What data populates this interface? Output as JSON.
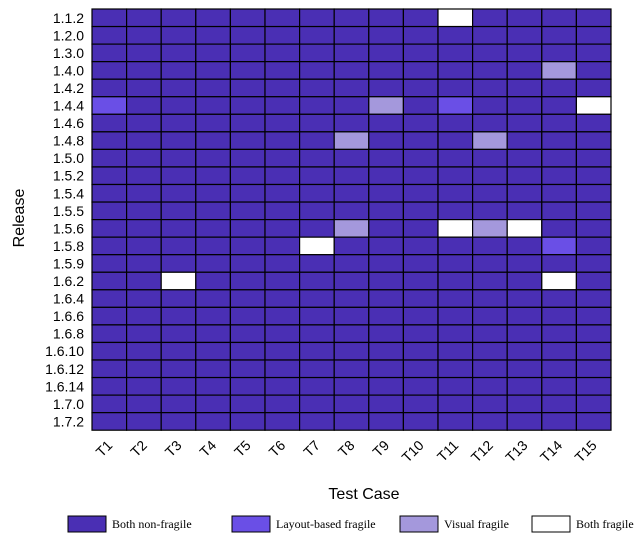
{
  "chart_data": {
    "type": "heatmap",
    "xlabel": "Test Case",
    "ylabel": "Release",
    "x_categories": [
      "T1",
      "T2",
      "T3",
      "T4",
      "T5",
      "T6",
      "T7",
      "T8",
      "T9",
      "T10",
      "T11",
      "T12",
      "T13",
      "T14",
      "T15"
    ],
    "y_categories": [
      "1.1.2",
      "1.2.0",
      "1.3.0",
      "1.4.0",
      "1.4.2",
      "1.4.4",
      "1.4.6",
      "1.4.8",
      "1.5.0",
      "1.5.2",
      "1.5.4",
      "1.5.5",
      "1.5.6",
      "1.5.8",
      "1.5.9",
      "1.6.2",
      "1.6.4",
      "1.6.6",
      "1.6.8",
      "1.6.10",
      "1.6.12",
      "1.6.14",
      "1.7.0",
      "1.7.2"
    ],
    "categories_legend": [
      {
        "code": 0,
        "label": "Both non-fragile",
        "color": "#4a2fb4"
      },
      {
        "code": 1,
        "label": "Layout-based fragile",
        "color": "#6a4fe6"
      },
      {
        "code": 2,
        "label": "Visual fragile",
        "color": "#a498dc"
      },
      {
        "code": 3,
        "label": "Both fragile",
        "color": "#ffffff"
      }
    ],
    "values": [
      [
        0,
        0,
        0,
        0,
        0,
        0,
        0,
        0,
        0,
        0,
        3,
        0,
        0,
        0,
        0
      ],
      [
        0,
        0,
        0,
        0,
        0,
        0,
        0,
        0,
        0,
        0,
        0,
        0,
        0,
        0,
        0
      ],
      [
        0,
        0,
        0,
        0,
        0,
        0,
        0,
        0,
        0,
        0,
        0,
        0,
        0,
        0,
        0
      ],
      [
        0,
        0,
        0,
        0,
        0,
        0,
        0,
        0,
        0,
        0,
        0,
        0,
        0,
        2,
        0
      ],
      [
        0,
        0,
        0,
        0,
        0,
        0,
        0,
        0,
        0,
        0,
        0,
        0,
        0,
        0,
        0
      ],
      [
        1,
        0,
        0,
        0,
        0,
        0,
        0,
        0,
        2,
        0,
        1,
        0,
        0,
        0,
        3
      ],
      [
        0,
        0,
        0,
        0,
        0,
        0,
        0,
        0,
        0,
        0,
        0,
        0,
        0,
        0,
        0
      ],
      [
        0,
        0,
        0,
        0,
        0,
        0,
        0,
        2,
        0,
        0,
        0,
        2,
        0,
        0,
        0
      ],
      [
        0,
        0,
        0,
        0,
        0,
        0,
        0,
        0,
        0,
        0,
        0,
        0,
        0,
        0,
        0
      ],
      [
        0,
        0,
        0,
        0,
        0,
        0,
        0,
        0,
        0,
        0,
        0,
        0,
        0,
        0,
        0
      ],
      [
        0,
        0,
        0,
        0,
        0,
        0,
        0,
        0,
        0,
        0,
        0,
        0,
        0,
        0,
        0
      ],
      [
        0,
        0,
        0,
        0,
        0,
        0,
        0,
        0,
        0,
        0,
        0,
        0,
        0,
        0,
        0
      ],
      [
        0,
        0,
        0,
        0,
        0,
        0,
        0,
        2,
        0,
        0,
        3,
        2,
        3,
        0,
        0
      ],
      [
        0,
        0,
        0,
        0,
        0,
        0,
        3,
        0,
        0,
        0,
        0,
        0,
        0,
        1,
        0
      ],
      [
        0,
        0,
        0,
        0,
        0,
        0,
        0,
        0,
        0,
        0,
        0,
        0,
        0,
        0,
        0
      ],
      [
        0,
        0,
        3,
        0,
        0,
        0,
        0,
        0,
        0,
        0,
        0,
        0,
        0,
        3,
        0
      ],
      [
        0,
        0,
        0,
        0,
        0,
        0,
        0,
        0,
        0,
        0,
        0,
        0,
        0,
        0,
        0
      ],
      [
        0,
        0,
        0,
        0,
        0,
        0,
        0,
        0,
        0,
        0,
        0,
        0,
        0,
        0,
        0
      ],
      [
        0,
        0,
        0,
        0,
        0,
        0,
        0,
        0,
        0,
        0,
        0,
        0,
        0,
        0,
        0
      ],
      [
        0,
        0,
        0,
        0,
        0,
        0,
        0,
        0,
        0,
        0,
        0,
        0,
        0,
        0,
        0
      ],
      [
        0,
        0,
        0,
        0,
        0,
        0,
        0,
        0,
        0,
        0,
        0,
        0,
        0,
        0,
        0
      ],
      [
        0,
        0,
        0,
        0,
        0,
        0,
        0,
        0,
        0,
        0,
        0,
        0,
        0,
        0,
        0
      ],
      [
        0,
        0,
        0,
        0,
        0,
        0,
        0,
        0,
        0,
        0,
        0,
        0,
        0,
        0,
        0
      ],
      [
        0,
        0,
        0,
        0,
        0,
        0,
        0,
        0,
        0,
        0,
        0,
        0,
        0,
        0,
        0
      ]
    ],
    "legend_position": "bottom",
    "grid": true
  }
}
